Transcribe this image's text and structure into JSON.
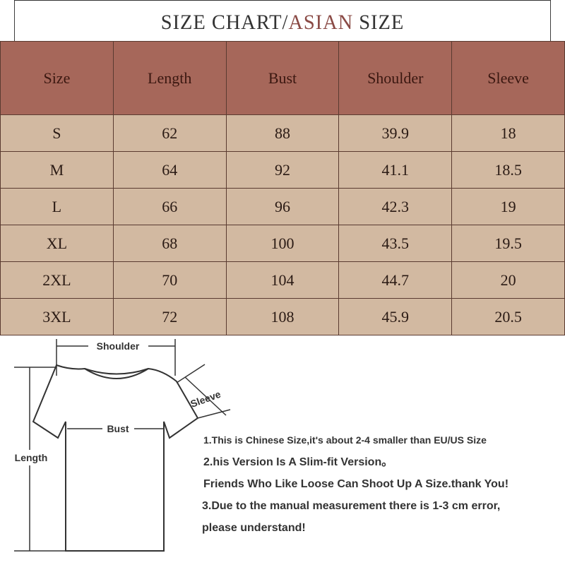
{
  "title": {
    "main": "SIZE CHART/",
    "accent": "ASIAN",
    "tail": " SIZE",
    "accent_color": "#8a4a45"
  },
  "table": {
    "header_color": "#a6675a",
    "row_color": "#d2b9a1",
    "headers": [
      "Size",
      "Length",
      "Bust",
      "Shoulder",
      "Sleeve"
    ],
    "rows": [
      [
        "S",
        "62",
        "88",
        "39.9",
        "18"
      ],
      [
        "M",
        "64",
        "92",
        "41.1",
        "18.5"
      ],
      [
        "L",
        "66",
        "96",
        "42.3",
        "19"
      ],
      [
        "XL",
        "68",
        "100",
        "43.5",
        "19.5"
      ],
      [
        "2XL",
        "70",
        "104",
        "44.7",
        "20"
      ],
      [
        "3XL",
        "72",
        "108",
        "45.9",
        "20.5"
      ]
    ]
  },
  "diagram": {
    "shoulder": "Shoulder",
    "sleeve": "Sleeve",
    "bust": "Bust",
    "length": "Length"
  },
  "notes": [
    "1.This is Chinese Size,it's about 2-4 smaller than EU/US Size",
    "2.his Version Is A Slim-fit Version。",
    "Friends Who Like Loose Can Shoot Up A Size.thank You!",
    "3.Due to the manual measurement there is 1-3 cm error,",
    "please understand!"
  ]
}
